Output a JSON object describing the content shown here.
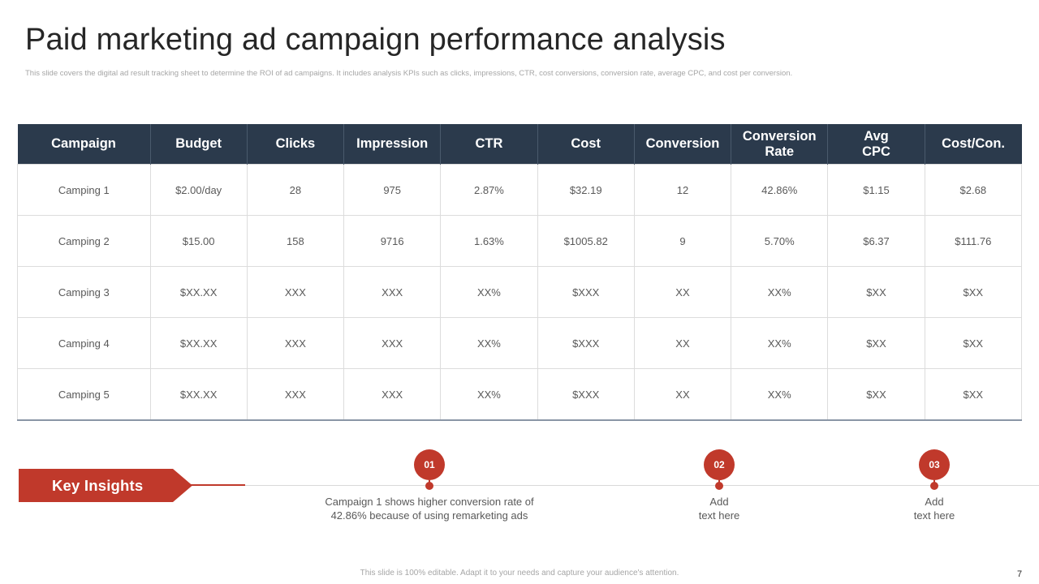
{
  "slide": {
    "title": "Paid marketing ad campaign performance analysis",
    "subtitle": "This slide covers the digital ad result tracking sheet to determine the ROI of ad campaigns. It includes analysis KPIs such as clicks, impressions, CTR, cost conversions, conversion rate, average CPC, and cost per conversion.",
    "footer": "This slide is 100% editable. Adapt it to your needs and capture your audience's attention.",
    "page_number": "7"
  },
  "table": {
    "headers": [
      "Campaign",
      "Budget",
      "Clicks",
      "Impression",
      "CTR",
      "Cost",
      "Conversion",
      "Conversion\nRate",
      "Avg\nCPC",
      "Cost/Con."
    ],
    "rows": [
      [
        "Camping 1",
        "$2.00/day",
        "28",
        "975",
        "2.87%",
        "$32.19",
        "12",
        "42.86%",
        "$1.15",
        "$2.68"
      ],
      [
        "Camping 2",
        "$15.00",
        "158",
        "9716",
        "1.63%",
        "$1005.82",
        "9",
        "5.70%",
        "$6.37",
        "$111.76"
      ],
      [
        "Camping 3",
        "$XX.XX",
        "XXX",
        "XXX",
        "XX%",
        "$XXX",
        "XX",
        "XX%",
        "$XX",
        "$XX"
      ],
      [
        "Camping 4",
        "$XX.XX",
        "XXX",
        "XXX",
        "XX%",
        "$XXX",
        "XX",
        "XX%",
        "$XX",
        "$XX"
      ],
      [
        "Camping 5",
        "$XX.XX",
        "XXX",
        "XXX",
        "XX%",
        "$XXX",
        "XX",
        "XX%",
        "$XX",
        "$XX"
      ]
    ]
  },
  "insights": {
    "label": "Key Insights",
    "items": [
      {
        "number": "01",
        "text": "Campaign 1 shows higher conversion rate of\n42.86% because of using remarketing ads"
      },
      {
        "number": "02",
        "text": "Add\ntext here"
      },
      {
        "number": "03",
        "text": "Add\ntext here"
      }
    ]
  },
  "colors": {
    "header_bg": "#2b3a4c",
    "accent_red": "#c0392b"
  }
}
